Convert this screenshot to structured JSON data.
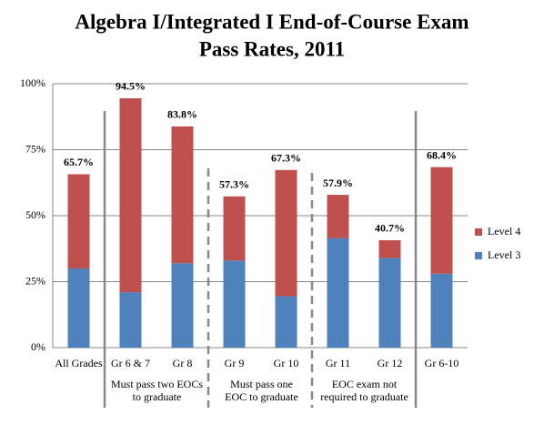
{
  "chart_data": {
    "type": "stacked_bar",
    "title": "Algebra I/Integrated I End-of-Course Exam",
    "subtitle": "Pass Rates, 2011",
    "categories": [
      "All Grades",
      "Gr 6 & 7",
      "Gr 8",
      "Gr 9",
      "Gr 10",
      "Gr 11",
      "Gr 12",
      "Gr 6-10"
    ],
    "series": [
      {
        "name": "Level 3",
        "color": "#4f81bd",
        "values": [
          30,
          21,
          32,
          33,
          19.5,
          41.5,
          34,
          28
        ]
      },
      {
        "name": "Level 4",
        "color": "#c0504d",
        "values": [
          35.7,
          73.5,
          51.8,
          24.3,
          47.8,
          16.4,
          6.7,
          40.4
        ]
      }
    ],
    "totals": {
      "values": [
        65.7,
        94.5,
        83.8,
        57.3,
        67.3,
        57.9,
        40.7,
        68.4
      ],
      "value_labels": [
        "65.7%",
        "94.5%",
        "83.8%",
        "57.3%",
        "67.3%",
        "57.9%",
        "40.7%",
        "68.4%"
      ]
    },
    "group_notes": [
      "Must pass two EOCs to graduate",
      "Must pass one EOC to graduate",
      "EOC exam not required to graduate"
    ],
    "ylim": [
      0,
      100
    ],
    "yticks": [
      {
        "value": 0,
        "label": "0%"
      },
      {
        "value": 25,
        "label": "25%"
      },
      {
        "value": 50,
        "label": "50%"
      },
      {
        "value": 75,
        "label": "75%"
      },
      {
        "value": 100,
        "label": "100%"
      }
    ],
    "grid": true,
    "legend": "right"
  }
}
